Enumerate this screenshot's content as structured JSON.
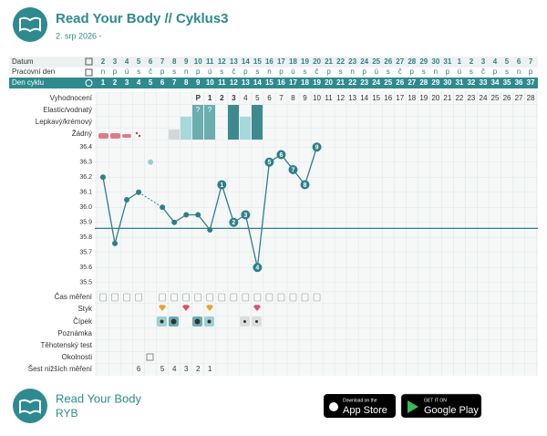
{
  "header": {
    "title": "Read Your Body // Cyklus3",
    "subtitle": "2. srp 2026 -"
  },
  "table": {
    "row_labels": [
      "Datum",
      "Pracovní den",
      "Den cyklu"
    ],
    "dates": [
      2,
      3,
      4,
      5,
      6,
      7,
      8,
      9,
      10,
      11,
      12,
      13,
      14,
      15,
      16,
      17,
      18,
      19,
      20,
      21,
      22,
      23,
      24,
      25,
      26,
      27,
      28,
      29,
      30,
      31,
      1,
      2,
      3,
      4,
      5,
      6,
      7
    ],
    "weekdays": [
      "n",
      "p",
      "ú",
      "s",
      "č",
      "p",
      "s",
      "n",
      "p",
      "ú",
      "s",
      "č",
      "p",
      "s",
      "n",
      "p",
      "ú",
      "s",
      "č",
      "p",
      "s",
      "n",
      "p",
      "ú",
      "s",
      "č",
      "p",
      "s",
      "n",
      "p",
      "ú",
      "s",
      "č",
      "p",
      "s",
      "n",
      "p"
    ],
    "cycle_days": [
      1,
      2,
      3,
      4,
      5,
      6,
      7,
      8,
      9,
      10,
      11,
      12,
      13,
      14,
      15,
      16,
      17,
      18,
      19,
      20,
      21,
      22,
      23,
      24,
      25,
      26,
      27,
      28,
      29,
      30,
      31,
      32,
      33,
      34,
      35,
      36,
      37
    ]
  },
  "chart_data": {
    "type": "line",
    "rows": [
      "Vyhodnocení",
      "Elastic/vodnatý",
      "Lepkavý/krémový",
      "Žádný"
    ],
    "evaluation": [
      null,
      null,
      null,
      null,
      null,
      null,
      null,
      null,
      "P",
      1,
      2,
      3,
      4,
      5,
      6,
      7,
      8,
      9,
      10,
      11,
      12,
      13,
      14,
      15,
      16,
      17,
      18,
      19,
      20,
      21,
      22,
      23,
      24,
      25,
      26,
      27,
      28
    ],
    "mucus_note": "?",
    "x": [
      1,
      2,
      3,
      4,
      5,
      6,
      7,
      8,
      9,
      10,
      11,
      12,
      13,
      14,
      15,
      16,
      17,
      18,
      19
    ],
    "values": [
      36.2,
      35.76,
      36.05,
      36.1,
      null,
      36.0,
      35.9,
      35.95,
      35.95,
      35.85,
      36.15,
      35.9,
      35.95,
      35.6,
      36.3,
      36.35,
      36.25,
      36.15,
      36.4
    ],
    "point_labels": [
      null,
      null,
      null,
      null,
      null,
      null,
      null,
      null,
      null,
      null,
      1,
      2,
      3,
      4,
      5,
      6,
      7,
      8,
      9
    ],
    "excluded": {
      "x": 5,
      "value": 36.3
    },
    "coverline": 35.86,
    "color": "#2e7f87",
    "ylim": [
      35.45,
      36.45
    ],
    "yticks": [
      36.4,
      36.3,
      36.2,
      36.1,
      {
        "value": 36,
        "label": "36.0"
      },
      35.9,
      35.8,
      35.7,
      35.6,
      35.5
    ],
    "lower_rows": [
      "Čas měření",
      "Styk",
      "Čípek",
      "Poznámka",
      "Těhotenský test",
      "Okolnosti"
    ],
    "six_lower": {
      "label": "Šest nižších měření",
      "x": [
        4,
        6,
        7,
        8,
        9,
        10
      ],
      "values": [
        6,
        5,
        4,
        3,
        2,
        1
      ]
    }
  },
  "footer": {
    "title": "Read Your Body",
    "subtitle": "RYB",
    "app_store": {
      "small": "Download on the",
      "big": "App Store"
    },
    "google_play": {
      "small": "GET IT ON",
      "big": "Google Play"
    }
  }
}
